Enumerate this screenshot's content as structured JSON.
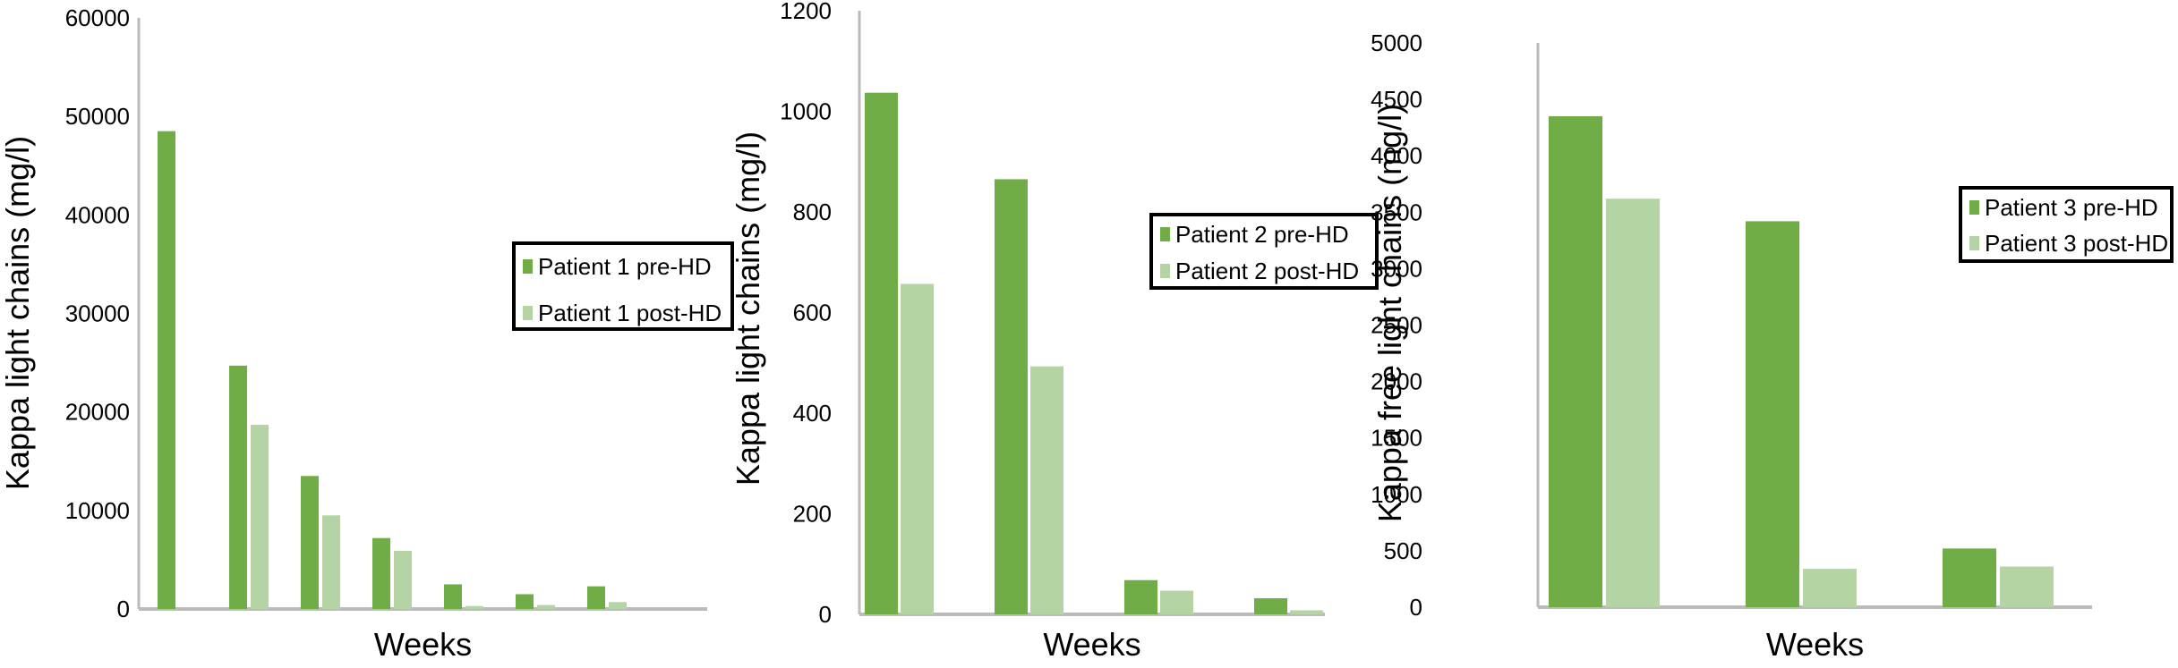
{
  "colors": {
    "pre": "#70ad47",
    "post": "#b5d4a4",
    "axis": "#bbbbbb"
  },
  "chart_data": [
    {
      "type": "bar",
      "xlabel": "Weeks",
      "ylabel": "Kappa light chains (mg/l)",
      "ylim": [
        0,
        60000
      ],
      "yticks": [
        "0",
        "10000",
        "20000",
        "30000",
        "40000",
        "50000",
        "60000"
      ],
      "legend_position": "right",
      "series": [
        {
          "name": "Patient 1 pre-HD",
          "values": [
            48500,
            24700,
            13500,
            7200,
            2500,
            1500,
            2300
          ]
        },
        {
          "name": "Patient 1 post-HD",
          "values": [
            null,
            18700,
            9500,
            5900,
            300,
            400,
            700
          ]
        }
      ]
    },
    {
      "type": "bar",
      "xlabel": "Weeks",
      "ylabel": "Kappa light chains (mg/l)",
      "ylim": [
        0,
        1200
      ],
      "yticks": [
        "0",
        "200",
        "400",
        "600",
        "800",
        "1000",
        "1200"
      ],
      "legend_position": "right",
      "series": [
        {
          "name": "Patient 2 pre-HD",
          "values": [
            1037,
            865,
            68,
            32
          ]
        },
        {
          "name": "Patient 2 post-HD",
          "values": [
            657,
            493,
            47,
            8
          ]
        }
      ]
    },
    {
      "type": "bar",
      "xlabel": "Weeks",
      "ylabel": "Kappa free light chains (mg/l)",
      "ylim": [
        0,
        5000
      ],
      "yticks": [
        "0",
        "500",
        "1000",
        "1500",
        "2000",
        "2500",
        "3000",
        "3500",
        "4000",
        "4500",
        "5000"
      ],
      "legend_position": "right",
      "series": [
        {
          "name": "Patient 3 pre-HD",
          "values": [
            4350,
            3420,
            520
          ]
        },
        {
          "name": "Patient 3 post-HD",
          "values": [
            3620,
            340,
            360
          ]
        }
      ]
    }
  ]
}
